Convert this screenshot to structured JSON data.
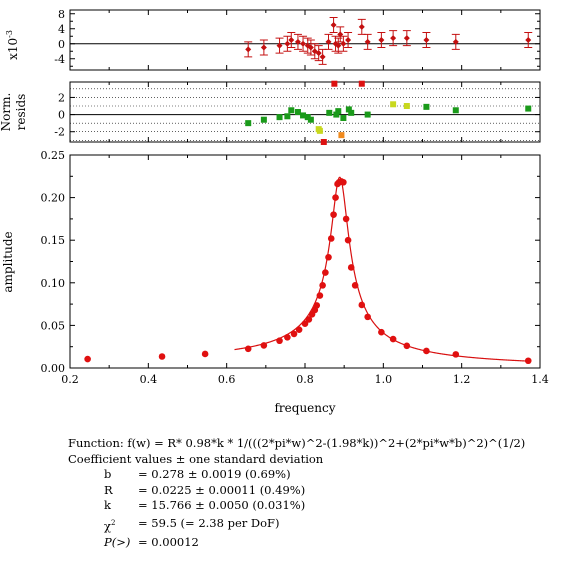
{
  "chart_data": {
    "type": "scatter",
    "xlabel": "frequency",
    "xlim": [
      0.2,
      1.4
    ],
    "xticks": [
      "0.2",
      "0.4",
      "0.6",
      "0.8",
      "1.0",
      "1.2",
      "1.4"
    ],
    "panels": {
      "residuals": {
        "ylabel": "x10",
        "ylabel_exponent": "-3",
        "ylim": [
          -7,
          9
        ],
        "yticks": [
          "8",
          "4",
          "0",
          "-4"
        ],
        "points": [
          {
            "x": 0.655,
            "y": -1.5,
            "err": 2.0
          },
          {
            "x": 0.695,
            "y": -1.0,
            "err": 2.0
          },
          {
            "x": 0.735,
            "y": -0.5,
            "err": 2.0
          },
          {
            "x": 0.755,
            "y": 0.0,
            "err": 2.0
          },
          {
            "x": 0.765,
            "y": 1.0,
            "err": 2.0
          },
          {
            "x": 0.782,
            "y": 0.5,
            "err": 2.0
          },
          {
            "x": 0.795,
            "y": 0.0,
            "err": 2.0
          },
          {
            "x": 0.807,
            "y": -0.5,
            "err": 2.0
          },
          {
            "x": 0.815,
            "y": -1.0,
            "err": 2.0
          },
          {
            "x": 0.825,
            "y": -2.0,
            "err": 2.0
          },
          {
            "x": 0.835,
            "y": -2.5,
            "err": 2.0
          },
          {
            "x": 0.845,
            "y": -3.5,
            "err": 2.0
          },
          {
            "x": 0.86,
            "y": 0.5,
            "err": 2.0
          },
          {
            "x": 0.873,
            "y": 5.0,
            "err": 2.0
          },
          {
            "x": 0.878,
            "y": 0.0,
            "err": 2.0
          },
          {
            "x": 0.885,
            "y": -0.5,
            "err": 2.0
          },
          {
            "x": 0.89,
            "y": 2.5,
            "err": 2.0
          },
          {
            "x": 0.898,
            "y": 0.0,
            "err": 2.0
          },
          {
            "x": 0.91,
            "y": 1.0,
            "err": 2.0
          },
          {
            "x": 0.945,
            "y": 4.5,
            "err": 2.0
          },
          {
            "x": 0.96,
            "y": 0.5,
            "err": 2.0
          },
          {
            "x": 0.995,
            "y": 1.0,
            "err": 2.0
          },
          {
            "x": 1.025,
            "y": 1.5,
            "err": 2.0
          },
          {
            "x": 1.06,
            "y": 1.5,
            "err": 2.0
          },
          {
            "x": 1.11,
            "y": 1.0,
            "err": 2.0
          },
          {
            "x": 1.185,
            "y": 0.5,
            "err": 2.0
          },
          {
            "x": 1.37,
            "y": 1.0,
            "err": 2.0
          }
        ]
      },
      "normalized_residuals": {
        "ylabel": "Norm. resids",
        "ylim": [
          -3.2,
          3.8
        ],
        "yticks": [
          "2",
          "0",
          "-2"
        ],
        "points": [
          {
            "x": 0.655,
            "y": -1.0,
            "color": "#1a9a1a"
          },
          {
            "x": 0.695,
            "y": -0.6,
            "color": "#1a9a1a"
          },
          {
            "x": 0.735,
            "y": -0.3,
            "color": "#1a9a1a"
          },
          {
            "x": 0.755,
            "y": -0.2,
            "color": "#1a9a1a"
          },
          {
            "x": 0.765,
            "y": 0.5,
            "color": "#1a9a1a"
          },
          {
            "x": 0.782,
            "y": 0.3,
            "color": "#1a9a1a"
          },
          {
            "x": 0.795,
            "y": -0.1,
            "color": "#1a9a1a"
          },
          {
            "x": 0.807,
            "y": -0.3,
            "color": "#1a9a1a"
          },
          {
            "x": 0.815,
            "y": -0.6,
            "color": "#1a9a1a"
          },
          {
            "x": 0.835,
            "y": -1.7,
            "color": "#c8d81e"
          },
          {
            "x": 0.838,
            "y": -1.9,
            "color": "#c8d81e"
          },
          {
            "x": 0.848,
            "y": -3.2,
            "color": "#dd1111"
          },
          {
            "x": 0.862,
            "y": 0.2,
            "color": "#1a9a1a"
          },
          {
            "x": 0.875,
            "y": 3.6,
            "color": "#dd1111"
          },
          {
            "x": 0.88,
            "y": 0.0,
            "color": "#1a9a1a"
          },
          {
            "x": 0.885,
            "y": 0.4,
            "color": "#1a9a1a"
          },
          {
            "x": 0.893,
            "y": -2.4,
            "color": "#f08a1e"
          },
          {
            "x": 0.898,
            "y": -0.4,
            "color": "#1a9a1a"
          },
          {
            "x": 0.912,
            "y": 0.6,
            "color": "#1a9a1a"
          },
          {
            "x": 0.918,
            "y": 0.2,
            "color": "#1a9a1a"
          },
          {
            "x": 0.945,
            "y": 3.6,
            "color": "#dd1111"
          },
          {
            "x": 0.96,
            "y": 0.0,
            "color": "#1a9a1a"
          },
          {
            "x": 1.025,
            "y": 1.2,
            "color": "#c8d81e"
          },
          {
            "x": 1.06,
            "y": 1.0,
            "color": "#c8d81e"
          },
          {
            "x": 1.11,
            "y": 0.9,
            "color": "#1a9a1a"
          },
          {
            "x": 1.185,
            "y": 0.5,
            "color": "#1a9a1a"
          },
          {
            "x": 1.37,
            "y": 0.7,
            "color": "#1a9a1a"
          }
        ]
      },
      "main": {
        "ylabel": "amplitude",
        "ylim": [
          0,
          0.25
        ],
        "yticks": [
          "0.25",
          "0.20",
          "0.15",
          "0.10",
          "0.05",
          "0.00"
        ],
        "data_color": "#e01010",
        "points": [
          {
            "x": 0.245,
            "y": 0.0105
          },
          {
            "x": 0.435,
            "y": 0.0135
          },
          {
            "x": 0.545,
            "y": 0.0165
          },
          {
            "x": 0.655,
            "y": 0.0225
          },
          {
            "x": 0.695,
            "y": 0.0265
          },
          {
            "x": 0.735,
            "y": 0.032
          },
          {
            "x": 0.755,
            "y": 0.036
          },
          {
            "x": 0.772,
            "y": 0.04
          },
          {
            "x": 0.785,
            "y": 0.045
          },
          {
            "x": 0.8,
            "y": 0.052
          },
          {
            "x": 0.81,
            "y": 0.057
          },
          {
            "x": 0.818,
            "y": 0.063
          },
          {
            "x": 0.825,
            "y": 0.068
          },
          {
            "x": 0.83,
            "y": 0.0735
          },
          {
            "x": 0.838,
            "y": 0.085
          },
          {
            "x": 0.845,
            "y": 0.097
          },
          {
            "x": 0.852,
            "y": 0.112
          },
          {
            "x": 0.86,
            "y": 0.13
          },
          {
            "x": 0.867,
            "y": 0.152
          },
          {
            "x": 0.873,
            "y": 0.18
          },
          {
            "x": 0.878,
            "y": 0.2
          },
          {
            "x": 0.883,
            "y": 0.216
          },
          {
            "x": 0.887,
            "y": 0.218
          },
          {
            "x": 0.893,
            "y": 0.219
          },
          {
            "x": 0.898,
            "y": 0.218
          },
          {
            "x": 0.905,
            "y": 0.175
          },
          {
            "x": 0.91,
            "y": 0.15
          },
          {
            "x": 0.918,
            "y": 0.118
          },
          {
            "x": 0.928,
            "y": 0.097
          },
          {
            "x": 0.945,
            "y": 0.074
          },
          {
            "x": 0.96,
            "y": 0.06
          },
          {
            "x": 0.995,
            "y": 0.042
          },
          {
            "x": 1.025,
            "y": 0.034
          },
          {
            "x": 1.06,
            "y": 0.026
          },
          {
            "x": 1.11,
            "y": 0.02
          },
          {
            "x": 1.185,
            "y": 0.016
          },
          {
            "x": 1.37,
            "y": 0.0085
          }
        ],
        "fit": {
          "b": 0.278,
          "R": 0.0225,
          "k": 15.766
        }
      }
    }
  },
  "fit_info": {
    "function": "Function: f(w) = R* 0.98*k * 1/(((2*pi*w)^2-(1.98*k))^2+(2*pi*w*b)^2)^(1/2)",
    "coef_header": "Coefficient values ± one standard deviation",
    "coefficients": [
      {
        "name": "b",
        "value": "= 0.278 ± 0.0019  (0.69%)"
      },
      {
        "name": "R",
        "value": "= 0.0225 ± 0.00011  (0.49%)"
      },
      {
        "name": "k",
        "value": "= 15.766 ± 0.0050  (0.031%)"
      }
    ],
    "chi_symbol": "χ",
    "chi_exponent": "2",
    "chi_value": "= 59.5 (= 2.38 per DoF)",
    "p_label": "P(>)",
    "p_value": "= 0.00012"
  }
}
